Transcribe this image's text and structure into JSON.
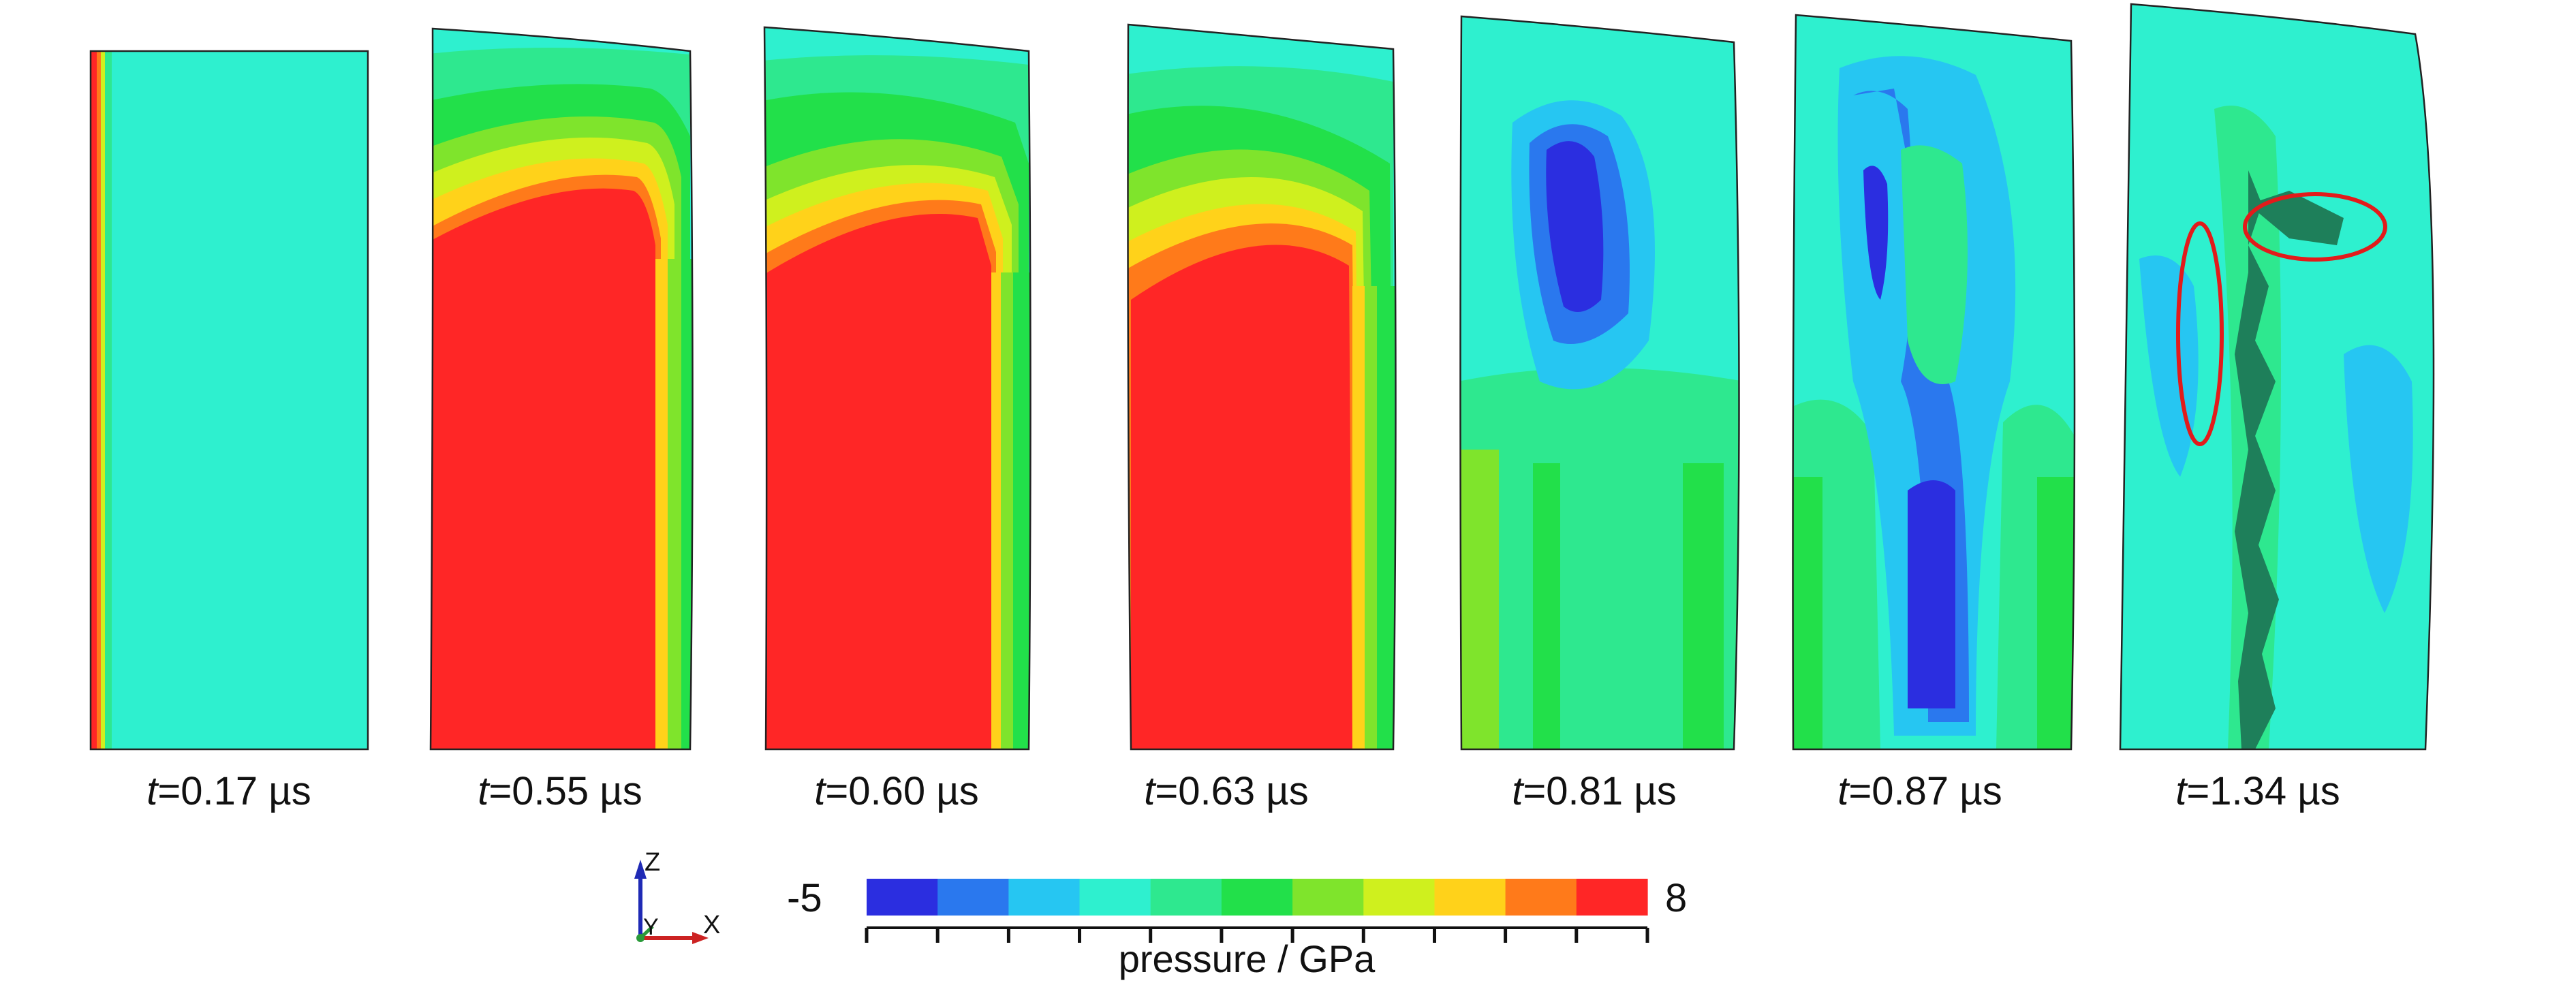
{
  "frames": [
    {
      "t": "t",
      "label": "=0.17 µs"
    },
    {
      "t": "t",
      "label": "=0.55 µs"
    },
    {
      "t": "t",
      "label": "=0.60 µs"
    },
    {
      "t": "t",
      "label": "=0.63 µs"
    },
    {
      "t": "t",
      "label": "=0.81 µs"
    },
    {
      "t": "t",
      "label": "=0.87 µs"
    },
    {
      "t": "t",
      "label": "=1.34 µs"
    }
  ],
  "colorbar": {
    "min_label": "-5",
    "max_label": "8",
    "title": "pressure / GPa",
    "colors": [
      "#2b2ee0",
      "#2a78ee",
      "#26c6f2",
      "#2ef0cf",
      "#2ee88f",
      "#22e04a",
      "#7fe42c",
      "#cff01e",
      "#ffd21a",
      "#ff7a1a",
      "#ff2626"
    ]
  },
  "axes_triad": {
    "z": "Z",
    "y": "Y",
    "x": "X"
  }
}
